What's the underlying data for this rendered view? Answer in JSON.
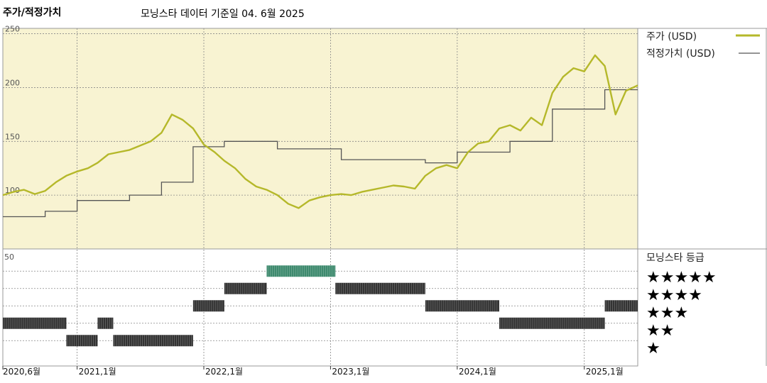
{
  "header": {
    "title": "주가/적정가치",
    "subtitle": "모닝스타 데이터 기준일 04. 6월 2025"
  },
  "colors": {
    "price": "#b5b82a",
    "fair": "#555555",
    "plot_bg": "#f8f3d2",
    "rating_bar": "#333333",
    "rating_bar_5": "#3e8a6e",
    "grid": "#888888"
  },
  "chart_data": [
    {
      "type": "line",
      "yticks": [
        250,
        200,
        150,
        100
      ],
      "ylim": [
        50,
        255
      ],
      "xlim": [
        "2020-06-01",
        "2025-06-04"
      ],
      "xtick_labels": [
        {
          "date": "2020-06-01",
          "label": "2020,6월"
        },
        {
          "date": "2021-01-01",
          "label": "2021,1월"
        },
        {
          "date": "2022-01-01",
          "label": "2022,1월"
        },
        {
          "date": "2023-01-01",
          "label": "2023,1월"
        },
        {
          "date": "2024-01-01",
          "label": "2024,1월"
        },
        {
          "date": "2025-01-01",
          "label": "2025,1월"
        }
      ],
      "legend_position": "right",
      "series": [
        {
          "name": "주가 (USD)",
          "points": [
            [
              "2020-06-01",
              100
            ],
            [
              "2020-07-01",
              103
            ],
            [
              "2020-08-01",
              105
            ],
            [
              "2020-09-01",
              101
            ],
            [
              "2020-10-01",
              104
            ],
            [
              "2020-11-01",
              112
            ],
            [
              "2020-12-01",
              118
            ],
            [
              "2021-01-01",
              122
            ],
            [
              "2021-02-01",
              125
            ],
            [
              "2021-03-01",
              130
            ],
            [
              "2021-04-01",
              138
            ],
            [
              "2021-05-01",
              140
            ],
            [
              "2021-06-01",
              142
            ],
            [
              "2021-07-01",
              146
            ],
            [
              "2021-08-01",
              150
            ],
            [
              "2021-09-01",
              158
            ],
            [
              "2021-10-01",
              175
            ],
            [
              "2021-11-01",
              170
            ],
            [
              "2021-12-01",
              162
            ],
            [
              "2022-01-01",
              147
            ],
            [
              "2022-02-01",
              140
            ],
            [
              "2022-03-01",
              132
            ],
            [
              "2022-04-01",
              125
            ],
            [
              "2022-05-01",
              115
            ],
            [
              "2022-06-01",
              108
            ],
            [
              "2022-07-01",
              105
            ],
            [
              "2022-08-01",
              100
            ],
            [
              "2022-09-01",
              92
            ],
            [
              "2022-10-01",
              88
            ],
            [
              "2022-11-01",
              95
            ],
            [
              "2022-12-01",
              98
            ],
            [
              "2023-01-01",
              100
            ],
            [
              "2023-02-01",
              101
            ],
            [
              "2023-03-01",
              100
            ],
            [
              "2023-04-01",
              103
            ],
            [
              "2023-05-01",
              105
            ],
            [
              "2023-06-01",
              107
            ],
            [
              "2023-07-01",
              109
            ],
            [
              "2023-08-01",
              108
            ],
            [
              "2023-09-01",
              106
            ],
            [
              "2023-10-01",
              118
            ],
            [
              "2023-11-01",
              125
            ],
            [
              "2023-12-01",
              128
            ],
            [
              "2024-01-01",
              125
            ],
            [
              "2024-02-01",
              140
            ],
            [
              "2024-03-01",
              148
            ],
            [
              "2024-04-01",
              150
            ],
            [
              "2024-05-01",
              162
            ],
            [
              "2024-06-01",
              165
            ],
            [
              "2024-07-01",
              160
            ],
            [
              "2024-08-01",
              172
            ],
            [
              "2024-09-01",
              165
            ],
            [
              "2024-10-01",
              195
            ],
            [
              "2024-11-01",
              210
            ],
            [
              "2024-12-01",
              218
            ],
            [
              "2025-01-01",
              215
            ],
            [
              "2025-02-01",
              230
            ],
            [
              "2025-03-01",
              220
            ],
            [
              "2025-04-01",
              175
            ],
            [
              "2025-05-01",
              197
            ],
            [
              "2025-06-04",
              202
            ]
          ]
        },
        {
          "name": "적정가치 (USD)",
          "points": [
            [
              "2020-06-01",
              80
            ],
            [
              "2020-10-01",
              80
            ],
            [
              "2020-10-01",
              85
            ],
            [
              "2021-01-01",
              85
            ],
            [
              "2021-01-01",
              95
            ],
            [
              "2021-06-01",
              95
            ],
            [
              "2021-06-01",
              100
            ],
            [
              "2021-09-01",
              100
            ],
            [
              "2021-09-01",
              112
            ],
            [
              "2021-12-01",
              112
            ],
            [
              "2021-12-01",
              145
            ],
            [
              "2022-03-01",
              145
            ],
            [
              "2022-03-01",
              150
            ],
            [
              "2022-08-01",
              150
            ],
            [
              "2022-08-01",
              143
            ],
            [
              "2023-02-01",
              143
            ],
            [
              "2023-02-01",
              133
            ],
            [
              "2023-10-01",
              133
            ],
            [
              "2023-10-01",
              130
            ],
            [
              "2024-01-01",
              130
            ],
            [
              "2024-01-01",
              140
            ],
            [
              "2024-06-01",
              140
            ],
            [
              "2024-06-01",
              150
            ],
            [
              "2024-10-01",
              150
            ],
            [
              "2024-10-01",
              180
            ],
            [
              "2025-03-01",
              180
            ],
            [
              "2025-03-01",
              198
            ],
            [
              "2025-06-04",
              198
            ]
          ]
        }
      ]
    },
    {
      "type": "bar",
      "legend_title": "모닝스타 등급",
      "ytick": "50",
      "rating_labels": [
        "★★★★★",
        "★★★★",
        "★★★",
        "★★",
        "★"
      ],
      "segments": [
        {
          "start": "2020-06-01",
          "end": "2020-12-01",
          "stars": 2
        },
        {
          "start": "2020-12-01",
          "end": "2021-03-01",
          "stars": 1
        },
        {
          "start": "2021-03-01",
          "end": "2021-04-15",
          "stars": 2
        },
        {
          "start": "2021-04-15",
          "end": "2021-12-01",
          "stars": 1
        },
        {
          "start": "2021-12-01",
          "end": "2022-03-01",
          "stars": 3
        },
        {
          "start": "2022-03-01",
          "end": "2022-07-01",
          "stars": 4
        },
        {
          "start": "2022-07-01",
          "end": "2023-01-15",
          "stars": 5
        },
        {
          "start": "2023-01-15",
          "end": "2023-10-01",
          "stars": 4
        },
        {
          "start": "2023-10-01",
          "end": "2024-05-01",
          "stars": 3
        },
        {
          "start": "2024-05-01",
          "end": "2025-03-01",
          "stars": 2
        },
        {
          "start": "2025-03-01",
          "end": "2025-06-04",
          "stars": 3
        }
      ]
    }
  ]
}
